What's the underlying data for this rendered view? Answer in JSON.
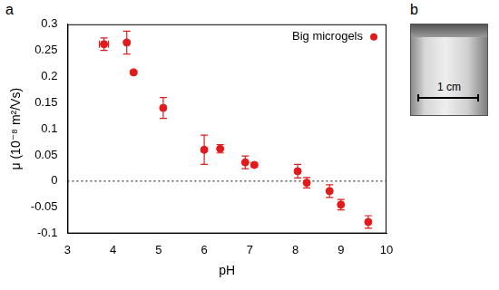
{
  "chart_data": {
    "type": "scatter",
    "panel_label": "a",
    "x_label": "pH",
    "y_label": "μ (10⁻⁸ m²/Vs)",
    "x": [
      3.8,
      4.3,
      4.45,
      5.1,
      6.0,
      6.35,
      6.9,
      7.1,
      8.05,
      8.25,
      8.75,
      9.0,
      9.6
    ],
    "series": [
      {
        "name": "Big microgels",
        "color": "#e31a1c",
        "marker": "circle",
        "values": [
          0.262,
          0.265,
          0.208,
          0.14,
          0.06,
          0.062,
          0.036,
          0.031,
          0.019,
          -0.003,
          -0.019,
          -0.045,
          -0.078
        ],
        "y_error": [
          0.012,
          0.022,
          0.003,
          0.02,
          0.028,
          0.008,
          0.012,
          0.004,
          0.013,
          0.01,
          0.012,
          0.01,
          0.012
        ],
        "x_error": [
          0.1,
          0,
          0,
          0,
          0,
          0,
          0,
          0,
          0,
          0,
          0,
          0,
          0
        ]
      }
    ],
    "xlim": [
      3,
      10
    ],
    "xticks": [
      3,
      4,
      5,
      6,
      7,
      8,
      9,
      10
    ],
    "ylim": [
      -0.1,
      0.3
    ],
    "yticks": [
      -0.1,
      -0.05,
      0,
      0.05,
      0.1,
      0.15,
      0.2,
      0.25,
      0.3
    ],
    "grid": false,
    "legend": "upper right"
  },
  "photo": {
    "panel_label": "b",
    "scale_bar": "1 cm"
  }
}
